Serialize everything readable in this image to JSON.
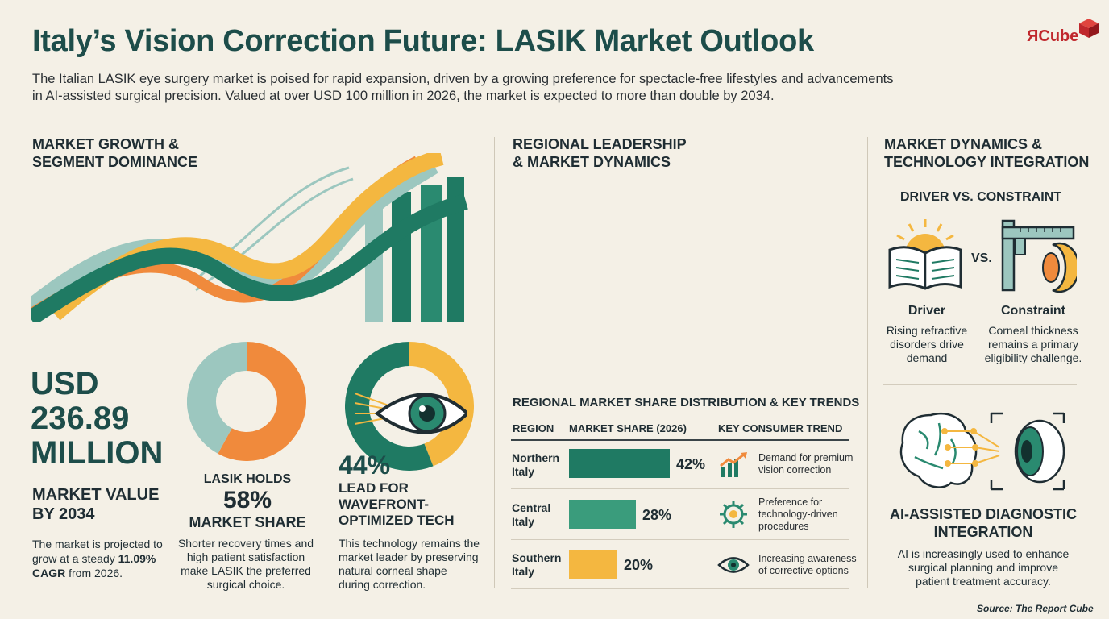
{
  "header": {
    "title": "Italy’s Vision Correction Future: LASIK Market Outlook",
    "intro_line1": "The Italian LASIK eye surgery market is poised for rapid expansion, driven by a growing preference for spectacle-free lifestyles and advancements",
    "intro_line2": "in AI-assisted surgical precision. Valued at over USD 100 million in 2026, the market is expected to more than double by 2034.",
    "logo_text": "ЯCube"
  },
  "left": {
    "heading_line1": "MARKET GROWTH &",
    "heading_line2": "SEGMENT DOMINANCE",
    "value_line1": "USD",
    "value_line2": "236.89",
    "value_line3": "MILLION",
    "value_label_line1": "MARKET VALUE",
    "value_label_line2": "BY 2034",
    "desc_line1": "The market is projected to",
    "desc_line2_pre": "grow at a steady ",
    "desc_cagr": "11.09%",
    "desc_line3_bold": "CAGR",
    "desc_line3_post": " from 2026.",
    "share_line1": "LASIK HOLDS",
    "share_pct": "58%",
    "share_line3": "MARKET SHARE",
    "share_desc1": "Shorter recovery times and",
    "share_desc2": "high patient satisfaction",
    "share_desc3": "make LASIK the preferred",
    "share_desc4": "surgical choice.",
    "wave_pct": "44%",
    "wave_line1": "LEAD FOR",
    "wave_line2": "WAVEFRONT-",
    "wave_line3": "OPTIMIZED TECH",
    "wave_desc1": "This technology remains the",
    "wave_desc2": "market leader by preserving",
    "wave_desc3": "natural corneal shape",
    "wave_desc4": "during correction."
  },
  "middle": {
    "heading_line1": "REGIONAL LEADERSHIP",
    "heading_line2": "& MARKET DYNAMICS",
    "table_title": "REGIONAL MARKET SHARE DISTRIBUTION & KEY TRENDS",
    "col_region": "REGION",
    "col_share": "MARKET SHARE (2026)",
    "col_trend": "KEY CONSUMER TREND",
    "rows": [
      {
        "region1": "Northern",
        "region2": "Italy",
        "share_label": "42%",
        "trend1": "Demand for premium",
        "trend2": "vision correction",
        "trend3": "",
        "icon": "growth-chart-icon"
      },
      {
        "region1": "Central",
        "region2": "Italy",
        "share_label": "28%",
        "trend1": "Preference for",
        "trend2": "technology-driven",
        "trend3": "procedures",
        "icon": "gear-icon"
      },
      {
        "region1": "Southern",
        "region2": "Italy",
        "share_label": "20%",
        "trend1": "Increasing awareness",
        "trend2": "of corrective options",
        "trend3": "",
        "icon": "eye-icon"
      }
    ]
  },
  "right": {
    "heading_line1": "MARKET DYNAMICS &",
    "heading_line2": "TECHNOLOGY INTEGRATION",
    "subheading": "DRIVER VS. CONSTRAINT",
    "vs": "VS.",
    "driver_title": "Driver",
    "driver_desc1": "Rising refractive",
    "driver_desc2": "disorders drive",
    "driver_desc3": "demand",
    "constraint_title": "Constraint",
    "constraint_desc1": "Corneal thickness",
    "constraint_desc2": "remains a primary",
    "constraint_desc3": "eligibility challenge.",
    "ai_title_line1": "AI-ASSISTED DIAGNOSTIC",
    "ai_title_line2": "INTEGRATION",
    "ai_desc1": "AI is increasingly used to enhance",
    "ai_desc2": "surgical planning and improve",
    "ai_desc3": "patient treatment accuracy."
  },
  "footer": {
    "source": "Source: The Report Cube"
  },
  "colors": {
    "teal_dark": "#1f7a63",
    "teal_mid": "#3a9c7c",
    "teal_light": "#9cc7bf",
    "orange": "#f08a3c",
    "yellow": "#f4b740",
    "navy": "#1d4d4a",
    "brand_red": "#c0282d"
  },
  "chart_data": [
    {
      "type": "pie",
      "categories": [
        "LASIK",
        "Other"
      ],
      "values": [
        58,
        42
      ]
    },
    {
      "type": "pie",
      "categories": [
        "Wavefront-Optimized",
        "Other"
      ],
      "values": [
        44,
        56
      ]
    },
    {
      "type": "bar",
      "title": "REGIONAL MARKET SHARE DISTRIBUTION & KEY TRENDS",
      "categories": [
        "Northern Italy",
        "Central Italy",
        "Southern Italy"
      ],
      "values": [
        42,
        28,
        20
      ],
      "ylabel": "MARKET SHARE (2026)",
      "unit": "%"
    }
  ]
}
